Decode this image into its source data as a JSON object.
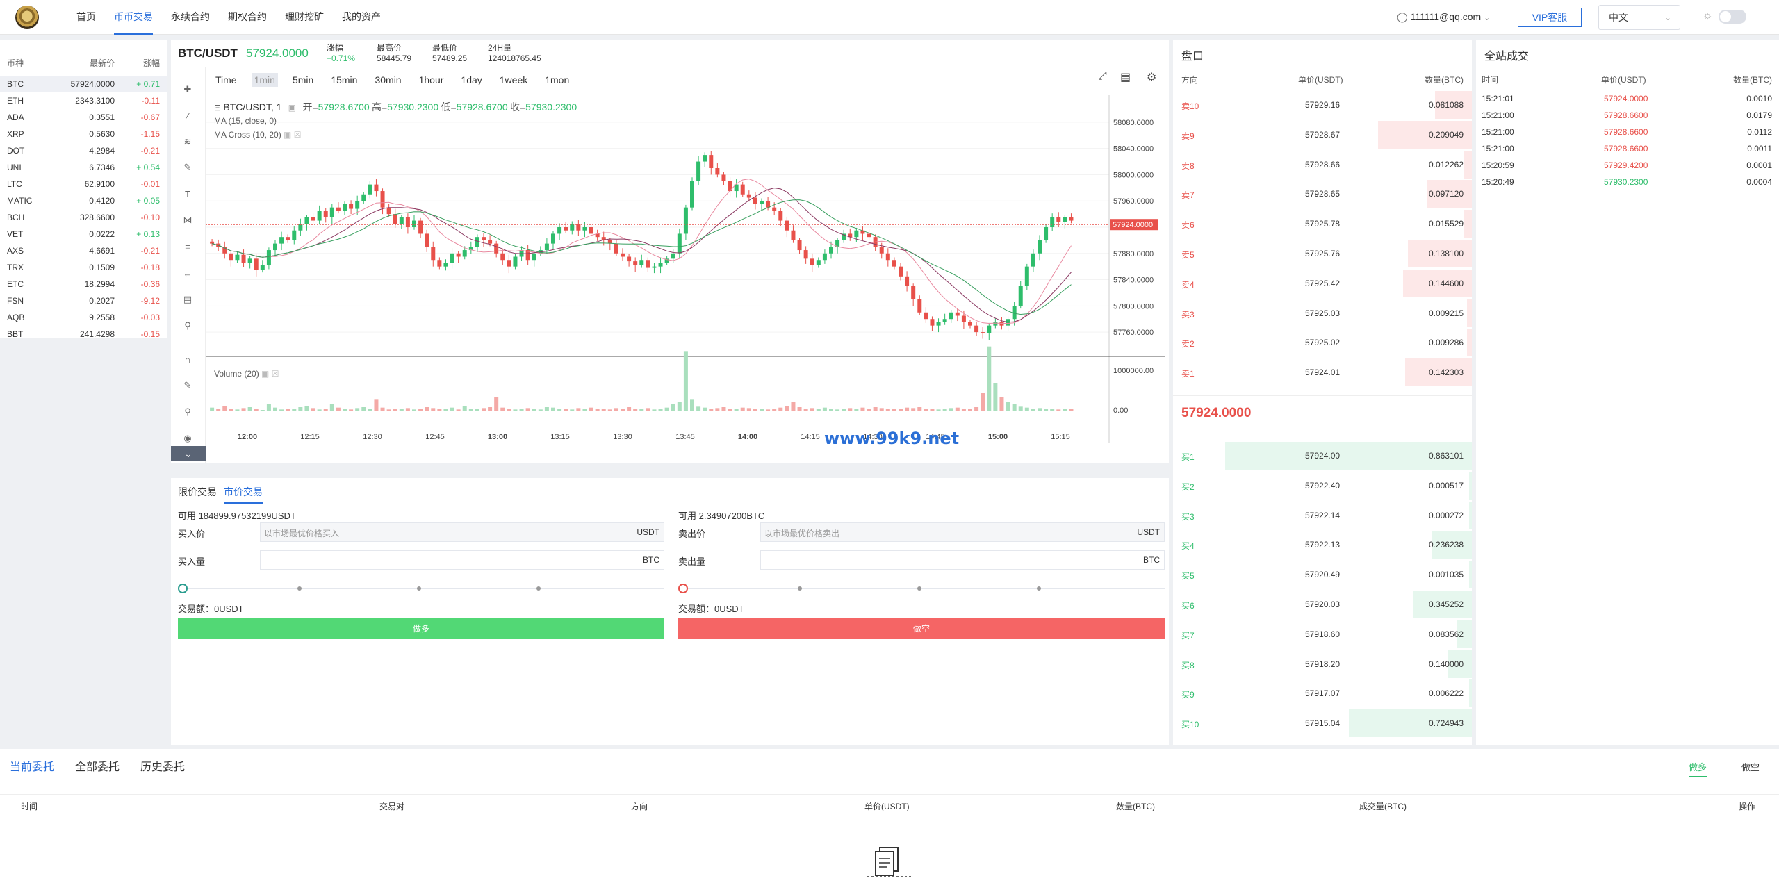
{
  "nav": {
    "items": [
      "首页",
      "币币交易",
      "永续合约",
      "期权合约",
      "理财挖矿",
      "我的资产"
    ],
    "active_index": 1,
    "user": "111111@qq.com",
    "vip": "VIP客服",
    "language": "中文"
  },
  "market": {
    "headers": [
      "币种",
      "最新价",
      "涨幅"
    ],
    "rows": [
      {
        "coin": "BTC",
        "price": "57924.0000",
        "change": "+ 0.71",
        "dir": "up"
      },
      {
        "coin": "ETH",
        "price": "2343.3100",
        "change": "-0.11",
        "dir": "down"
      },
      {
        "coin": "ADA",
        "price": "0.3551",
        "change": "-0.67",
        "dir": "down"
      },
      {
        "coin": "XRP",
        "price": "0.5630",
        "change": "-1.15",
        "dir": "down"
      },
      {
        "coin": "DOT",
        "price": "4.2984",
        "change": "-0.21",
        "dir": "down"
      },
      {
        "coin": "UNI",
        "price": "6.7346",
        "change": "+ 0.54",
        "dir": "up"
      },
      {
        "coin": "LTC",
        "price": "62.9100",
        "change": "-0.01",
        "dir": "down"
      },
      {
        "coin": "MATIC",
        "price": "0.4120",
        "change": "+ 0.05",
        "dir": "up"
      },
      {
        "coin": "BCH",
        "price": "328.6600",
        "change": "-0.10",
        "dir": "down"
      },
      {
        "coin": "VET",
        "price": "0.0222",
        "change": "+ 0.13",
        "dir": "up"
      },
      {
        "coin": "AXS",
        "price": "4.6691",
        "change": "-0.21",
        "dir": "down"
      },
      {
        "coin": "TRX",
        "price": "0.1509",
        "change": "-0.18",
        "dir": "down"
      },
      {
        "coin": "ETC",
        "price": "18.2994",
        "change": "-0.36",
        "dir": "down"
      },
      {
        "coin": "FSN",
        "price": "0.2027",
        "change": "-9.12",
        "dir": "down"
      },
      {
        "coin": "AQB",
        "price": "9.2558",
        "change": "-0.03",
        "dir": "down"
      },
      {
        "coin": "BBT",
        "price": "241.4298",
        "change": "-0.15",
        "dir": "down"
      }
    ]
  },
  "ticker": {
    "pair": "BTC/USDT",
    "price": "57924.0000",
    "change_label": "涨幅",
    "change": "+0.71%",
    "high_label": "最高价",
    "high": "58445.79",
    "low_label": "最低价",
    "low": "57489.25",
    "vol_label": "24H量",
    "vol": "124018765.45"
  },
  "chart": {
    "timeframes": [
      "Time",
      "1min",
      "5min",
      "15min",
      "30min",
      "1hour",
      "1day",
      "1week",
      "1mon"
    ],
    "active_tf": "1min",
    "symbol_label": "BTC/USDT, 1",
    "ohlc": {
      "open_label": "开=",
      "open": "57928.6700",
      "high_label": "高=",
      "high": "57930.2300",
      "low_label": "低=",
      "low": "57928.6700",
      "close_label": "收=",
      "close": "57930.2300"
    },
    "study1": "MA (15, close, 0)",
    "study2": "MA Cross (10, 20)",
    "volume_study": "Volume (20)",
    "price_labels": [
      "58080.0000",
      "58040.0000",
      "58000.0000",
      "57960.0000",
      "57920.0000",
      "57880.0000",
      "57840.0000",
      "57800.0000",
      "57760.0000"
    ],
    "current_price_tag": "57924.0000",
    "volume_labels": [
      "1000000.00",
      "0.00"
    ],
    "time_labels": [
      "12:00",
      "12:15",
      "12:30",
      "12:45",
      "13:00",
      "13:15",
      "13:30",
      "13:45",
      "14:00",
      "14:15",
      "14:30",
      "14:45",
      "15:00",
      "15:15"
    ],
    "watermark": "www.99k9.net",
    "colors": {
      "up": "#2ebd6b",
      "down": "#e8504a",
      "ma1": "#8b3a62",
      "ma2": "#e98aa0",
      "ma3": "#3aa060"
    }
  },
  "chart_data": {
    "type": "candlestick",
    "title": "BTC/USDT, 1",
    "ylim": [
      57740,
      58100
    ],
    "closes": [
      57895,
      57890,
      57880,
      57870,
      57878,
      57865,
      57872,
      57855,
      57862,
      57885,
      57895,
      57905,
      57900,
      57915,
      57925,
      57935,
      57930,
      57945,
      57935,
      57950,
      57945,
      57955,
      57948,
      57960,
      57970,
      57985,
      57975,
      57950,
      57940,
      57925,
      57935,
      57920,
      57930,
      57910,
      57890,
      57870,
      57860,
      57865,
      57880,
      57875,
      57885,
      57890,
      57905,
      57900,
      57895,
      57880,
      57870,
      57860,
      57875,
      57885,
      57870,
      57880,
      57885,
      57895,
      57910,
      57920,
      57915,
      57925,
      57915,
      57920,
      57910,
      57905,
      57900,
      57895,
      57880,
      57875,
      57868,
      57862,
      57870,
      57858,
      57860,
      57866,
      57872,
      57880,
      57910,
      57950,
      57990,
      58020,
      58030,
      58010,
      58000,
      57990,
      57975,
      57985,
      57970,
      57965,
      57955,
      57960,
      57950,
      57945,
      57930,
      57915,
      57900,
      57885,
      57872,
      57862,
      57870,
      57880,
      57890,
      57900,
      57910,
      57905,
      57915,
      57910,
      57905,
      57890,
      57880,
      57870,
      57860,
      57845,
      57830,
      57810,
      57790,
      57780,
      57770,
      57775,
      57780,
      57790,
      57785,
      57775,
      57770,
      57760,
      57758,
      57770,
      57775,
      57770,
      57780,
      57800,
      57830,
      57860,
      57880,
      57900,
      57920,
      57935,
      57928,
      57935,
      57930
    ],
    "volumes": [
      80000,
      60000,
      120000,
      50000,
      40000,
      70000,
      90000,
      60000,
      30000,
      150000,
      80000,
      40000,
      60000,
      50000,
      90000,
      120000,
      70000,
      40000,
      60000,
      150000,
      80000,
      50000,
      40000,
      70000,
      90000,
      60000,
      250000,
      80000,
      40000,
      60000,
      50000,
      70000,
      40000,
      60000,
      90000,
      70000,
      50000,
      60000,
      80000,
      40000,
      120000,
      60000,
      50000,
      70000,
      90000,
      300000,
      80000,
      60000,
      40000,
      50000,
      70000,
      60000,
      40000,
      90000,
      80000,
      60000,
      50000,
      40000,
      70000,
      60000,
      80000,
      50000,
      60000,
      40000,
      70000,
      60000,
      90000,
      50000,
      60000,
      70000,
      40000,
      60000,
      80000,
      150000,
      200000,
      1300000,
      250000,
      100000,
      80000,
      60000,
      70000,
      90000,
      50000,
      60000,
      80000,
      70000,
      60000,
      50000,
      40000,
      60000,
      80000,
      120000,
      200000,
      90000,
      60000,
      70000,
      50000,
      80000,
      60000,
      40000,
      60000,
      70000,
      50000,
      80000,
      60000,
      90000,
      70000,
      60000,
      50000,
      60000,
      80000,
      70000,
      90000,
      60000,
      50000,
      40000,
      60000,
      70000,
      80000,
      50000,
      60000,
      90000,
      400000,
      1400000,
      600000,
      300000,
      200000,
      150000,
      100000,
      80000,
      60000,
      70000,
      50000,
      60000,
      40000,
      50000,
      60000
    ]
  },
  "form": {
    "tab_limit": "限价交易",
    "tab_market": "市价交易",
    "buy": {
      "avail": "可用 184899.97532199USDT",
      "price_label": "买入价",
      "price_placeholder": "以市场最优价格买入",
      "price_unit": "USDT",
      "qty_label": "买入量",
      "qty_unit": "BTC",
      "amount": "交易额：0USDT",
      "button": "做多"
    },
    "sell": {
      "avail": "可用 2.34907200BTC",
      "price_label": "卖出价",
      "price_placeholder": "以市场最优价格卖出",
      "price_unit": "USDT",
      "qty_label": "卖出量",
      "qty_unit": "BTC",
      "amount": "交易额：0USDT",
      "button": "做空"
    }
  },
  "book": {
    "title": "盘口",
    "headers": [
      "方向",
      "单价(USDT)",
      "数量(BTC)"
    ],
    "asks": [
      {
        "side": "卖10",
        "price": "57929.16",
        "qty": "0.081088",
        "depth": 0.15
      },
      {
        "side": "卖9",
        "price": "57928.67",
        "qty": "0.209049",
        "depth": 0.38
      },
      {
        "side": "卖8",
        "price": "57928.66",
        "qty": "0.012262",
        "depth": 0.03
      },
      {
        "side": "卖7",
        "price": "57928.65",
        "qty": "0.097120",
        "depth": 0.18
      },
      {
        "side": "卖6",
        "price": "57925.78",
        "qty": "0.015529",
        "depth": 0.03
      },
      {
        "side": "卖5",
        "price": "57925.76",
        "qty": "0.138100",
        "depth": 0.26
      },
      {
        "side": "卖4",
        "price": "57925.42",
        "qty": "0.144600",
        "depth": 0.28
      },
      {
        "side": "卖3",
        "price": "57925.03",
        "qty": "0.009215",
        "depth": 0.02
      },
      {
        "side": "卖2",
        "price": "57925.02",
        "qty": "0.009286",
        "depth": 0.02
      },
      {
        "side": "卖1",
        "price": "57924.01",
        "qty": "0.142303",
        "depth": 0.27
      }
    ],
    "mid_price": "57924.0000",
    "bids": [
      {
        "side": "买1",
        "price": "57924.00",
        "qty": "0.863101",
        "depth": 1.0
      },
      {
        "side": "买2",
        "price": "57922.40",
        "qty": "0.000517",
        "depth": 0.01
      },
      {
        "side": "买3",
        "price": "57922.14",
        "qty": "0.000272",
        "depth": 0.01
      },
      {
        "side": "买4",
        "price": "57922.13",
        "qty": "0.236238",
        "depth": 0.16
      },
      {
        "side": "买5",
        "price": "57920.49",
        "qty": "0.001035",
        "depth": 0.01
      },
      {
        "side": "买6",
        "price": "57920.03",
        "qty": "0.345252",
        "depth": 0.24
      },
      {
        "side": "买7",
        "price": "57918.60",
        "qty": "0.083562",
        "depth": 0.06
      },
      {
        "side": "买8",
        "price": "57918.20",
        "qty": "0.140000",
        "depth": 0.1
      },
      {
        "side": "买9",
        "price": "57917.07",
        "qty": "0.006222",
        "depth": 0.01
      },
      {
        "side": "买10",
        "price": "57915.04",
        "qty": "0.724943",
        "depth": 0.5
      }
    ]
  },
  "trades": {
    "title": "全站成交",
    "headers": [
      "时间",
      "单价(USDT)",
      "数量(BTC)"
    ],
    "rows": [
      {
        "time": "15:21:01",
        "price": "57924.0000",
        "qty": "0.0010",
        "dir": "down"
      },
      {
        "time": "15:21:00",
        "price": "57928.6600",
        "qty": "0.0179",
        "dir": "down"
      },
      {
        "time": "15:21:00",
        "price": "57928.6600",
        "qty": "0.0112",
        "dir": "down"
      },
      {
        "time": "15:21:00",
        "price": "57928.6600",
        "qty": "0.0011",
        "dir": "down"
      },
      {
        "time": "15:20:59",
        "price": "57929.4200",
        "qty": "0.0001",
        "dir": "down"
      },
      {
        "time": "15:20:49",
        "price": "57930.2300",
        "qty": "0.0004",
        "dir": "up"
      }
    ]
  },
  "orders": {
    "tabs": [
      "当前委托",
      "全部委托",
      "历史委托"
    ],
    "filter_long": "做多",
    "filter_short": "做空",
    "headers": [
      "时间",
      "交易对",
      "方向",
      "单价(USDT)",
      "数量(BTC)",
      "成交量(BTC)",
      "操作"
    ]
  }
}
